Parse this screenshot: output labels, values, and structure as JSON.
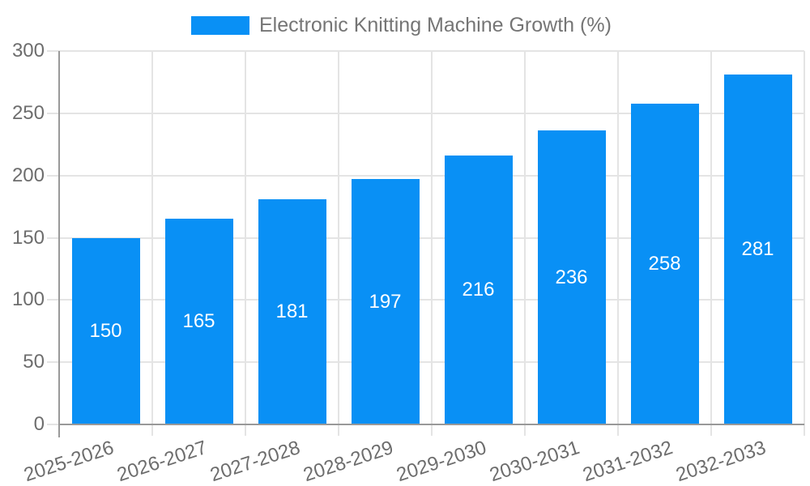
{
  "legend": {
    "label": "Electronic Knitting Machine Growth (%)"
  },
  "chart_data": {
    "type": "bar",
    "title": "Electronic Knitting Machine Growth (%)",
    "categories": [
      "2025-2026",
      "2026-2027",
      "2027-2028",
      "2028-2029",
      "2029-2030",
      "2030-2031",
      "2031-2032",
      "2032-2033"
    ],
    "values": [
      150,
      165,
      181,
      197,
      216,
      236,
      258,
      281
    ],
    "series": [
      {
        "name": "Electronic Knitting Machine Growth (%)",
        "values": [
          150,
          165,
          181,
          197,
          216,
          236,
          258,
          281
        ]
      }
    ],
    "xlabel": "",
    "ylabel": "",
    "ylim": [
      0,
      300
    ],
    "yticks": [
      0,
      50,
      100,
      150,
      200,
      250,
      300
    ],
    "grid": true,
    "legend_position": "top-center",
    "value_labels": "inside-center",
    "x_label_rotation_deg": -18
  },
  "colors": {
    "bar": "#0990F5",
    "value_label": "#FFFFFF",
    "axis_line": "#999999",
    "gridline": "#E4E4E4",
    "tick_label": "#6D6D6D",
    "legend_text": "#757575",
    "background": "#FFFFFF"
  }
}
